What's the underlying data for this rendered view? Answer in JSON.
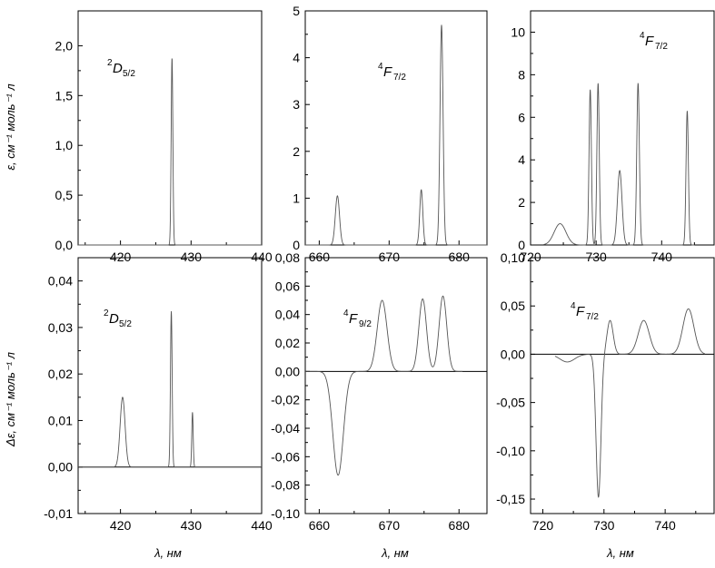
{
  "figure": {
    "y_label_top": "ε, см⁻¹ моль⁻¹ л",
    "y_label_bottom": "Δε, см⁻¹ моль⁻¹ л",
    "x_label": "λ, нм"
  },
  "chart_data": [
    {
      "id": "a",
      "type": "line",
      "label": {
        "sup": "2",
        "main": "D",
        "sub": "5/2"
      },
      "xlim": [
        414,
        440
      ],
      "ylim": [
        0,
        2.35
      ],
      "xticks": [
        420,
        430,
        440
      ],
      "xtick_labels": [
        "420",
        "430",
        "440"
      ],
      "yticks": [
        0,
        0.5,
        1.0,
        1.5,
        2.0
      ],
      "ytick_labels": [
        "0,0",
        "0,5",
        "1,0",
        "1,5",
        "2,0"
      ],
      "baseline": 0,
      "peaks": [
        {
          "x": 427.3,
          "y": 1.88,
          "w": 0.12
        }
      ],
      "x_range": [
        414,
        440
      ],
      "series": [
        {
          "values": []
        }
      ]
    },
    {
      "id": "b",
      "type": "line",
      "label": {
        "sup": "4",
        "main": "F",
        "sub": "7/2"
      },
      "xlim": [
        658,
        684
      ],
      "ylim": [
        0,
        5
      ],
      "xticks": [
        660,
        670,
        680
      ],
      "xtick_labels": [
        "660",
        "670",
        "680"
      ],
      "yticks": [
        0,
        1,
        2,
        3,
        4,
        5
      ],
      "ytick_labels": [
        "0",
        "1",
        "2",
        "3",
        "4",
        "5"
      ],
      "baseline": 0,
      "peaks": [
        {
          "x": 662.6,
          "y": 1.05,
          "w": 0.3
        },
        {
          "x": 674.6,
          "y": 1.18,
          "w": 0.22
        },
        {
          "x": 677.5,
          "y": 4.7,
          "w": 0.22
        }
      ],
      "x_range": [
        658,
        684
      ],
      "series": [
        {
          "values": []
        }
      ]
    },
    {
      "id": "c",
      "type": "line",
      "label": {
        "sup": "4",
        "main": "F",
        "sub": "7/2"
      },
      "xlim": [
        720,
        748
      ],
      "ylim": [
        0,
        11
      ],
      "xticks": [
        720,
        730,
        740
      ],
      "xtick_labels": [
        "720",
        "730",
        "740"
      ],
      "yticks": [
        0,
        2,
        4,
        6,
        8,
        10
      ],
      "ytick_labels": [
        "0",
        "2",
        "4",
        "6",
        "8",
        "10"
      ],
      "baseline": 0,
      "peaks": [
        {
          "x": 724.5,
          "y": 1.0,
          "w": 0.9
        },
        {
          "x": 729.1,
          "y": 7.3,
          "w": 0.18
        },
        {
          "x": 730.3,
          "y": 7.6,
          "w": 0.18
        },
        {
          "x": 733.6,
          "y": 3.5,
          "w": 0.35
        },
        {
          "x": 736.4,
          "y": 7.6,
          "w": 0.2
        },
        {
          "x": 743.9,
          "y": 6.3,
          "w": 0.18
        }
      ],
      "x_range": [
        722,
        745
      ],
      "series": [
        {
          "values": []
        }
      ]
    },
    {
      "id": "d",
      "type": "line",
      "label": {
        "sup": "2",
        "main": "D",
        "sub": "5/2"
      },
      "xlim": [
        414,
        440
      ],
      "ylim": [
        -0.01,
        0.045
      ],
      "xticks": [
        420,
        430,
        440
      ],
      "xtick_labels": [
        "420",
        "430",
        "440"
      ],
      "yticks": [
        -0.01,
        0,
        0.01,
        0.02,
        0.03,
        0.04
      ],
      "ytick_labels": [
        "-0,01",
        "0,00",
        "0,01",
        "0,02",
        "0,03",
        "0,04"
      ],
      "baseline": 0,
      "peaks": [
        {
          "x": 420.3,
          "y": 0.015,
          "w": 0.35
        },
        {
          "x": 427.2,
          "y": 0.0335,
          "w": 0.12
        },
        {
          "x": 430.2,
          "y": 0.0118,
          "w": 0.1
        }
      ],
      "x_range": [
        414,
        440
      ],
      "series": [
        {
          "values": []
        }
      ]
    },
    {
      "id": "e",
      "type": "line",
      "label": {
        "sup": "4",
        "main": "F",
        "sub": "9/2"
      },
      "xlim": [
        658,
        684
      ],
      "ylim": [
        -0.1,
        0.08
      ],
      "xticks": [
        660,
        670,
        680
      ],
      "xtick_labels": [
        "660",
        "670",
        "680"
      ],
      "yticks": [
        -0.1,
        -0.08,
        -0.06,
        -0.04,
        -0.02,
        0,
        0.02,
        0.04,
        0.06,
        0.08
      ],
      "ytick_labels": [
        "-0,10",
        "-0,08",
        "-0,06",
        "-0,04",
        "-0,02",
        "0,00",
        "0,02",
        "0,04",
        "0,06",
        "0,08"
      ],
      "baseline": 0,
      "peaks": [
        {
          "x": 662.7,
          "y": -0.073,
          "w": 0.75
        },
        {
          "x": 669.0,
          "y": 0.05,
          "w": 0.7
        },
        {
          "x": 674.8,
          "y": 0.051,
          "w": 0.55
        },
        {
          "x": 677.7,
          "y": 0.053,
          "w": 0.55
        }
      ],
      "x_range": [
        658,
        680.5
      ],
      "series": [
        {
          "values": []
        }
      ]
    },
    {
      "id": "f",
      "type": "line",
      "label": {
        "sup": "4",
        "main": "F",
        "sub": "7/2"
      },
      "xlim": [
        718,
        748
      ],
      "ylim": [
        -0.165,
        0.1
      ],
      "xticks": [
        720,
        730,
        740
      ],
      "xtick_labels": [
        "720",
        "730",
        "740"
      ],
      "yticks": [
        -0.15,
        -0.1,
        -0.05,
        0,
        0.05,
        0.1
      ],
      "ytick_labels": [
        "-0,15",
        "-0,10",
        "-0,05",
        "0,00",
        "0,05",
        "0,10"
      ],
      "baseline": 0,
      "peaks": [
        {
          "x": 724.0,
          "y": -0.008,
          "w": 1.2
        },
        {
          "x": 729.1,
          "y": -0.148,
          "w": 0.4
        },
        {
          "x": 731.0,
          "y": 0.035,
          "w": 0.5
        },
        {
          "x": 736.5,
          "y": 0.035,
          "w": 0.9
        },
        {
          "x": 743.8,
          "y": 0.047,
          "w": 0.9
        }
      ],
      "x_range": [
        722,
        746.5
      ],
      "series": [
        {
          "values": []
        }
      ]
    }
  ]
}
